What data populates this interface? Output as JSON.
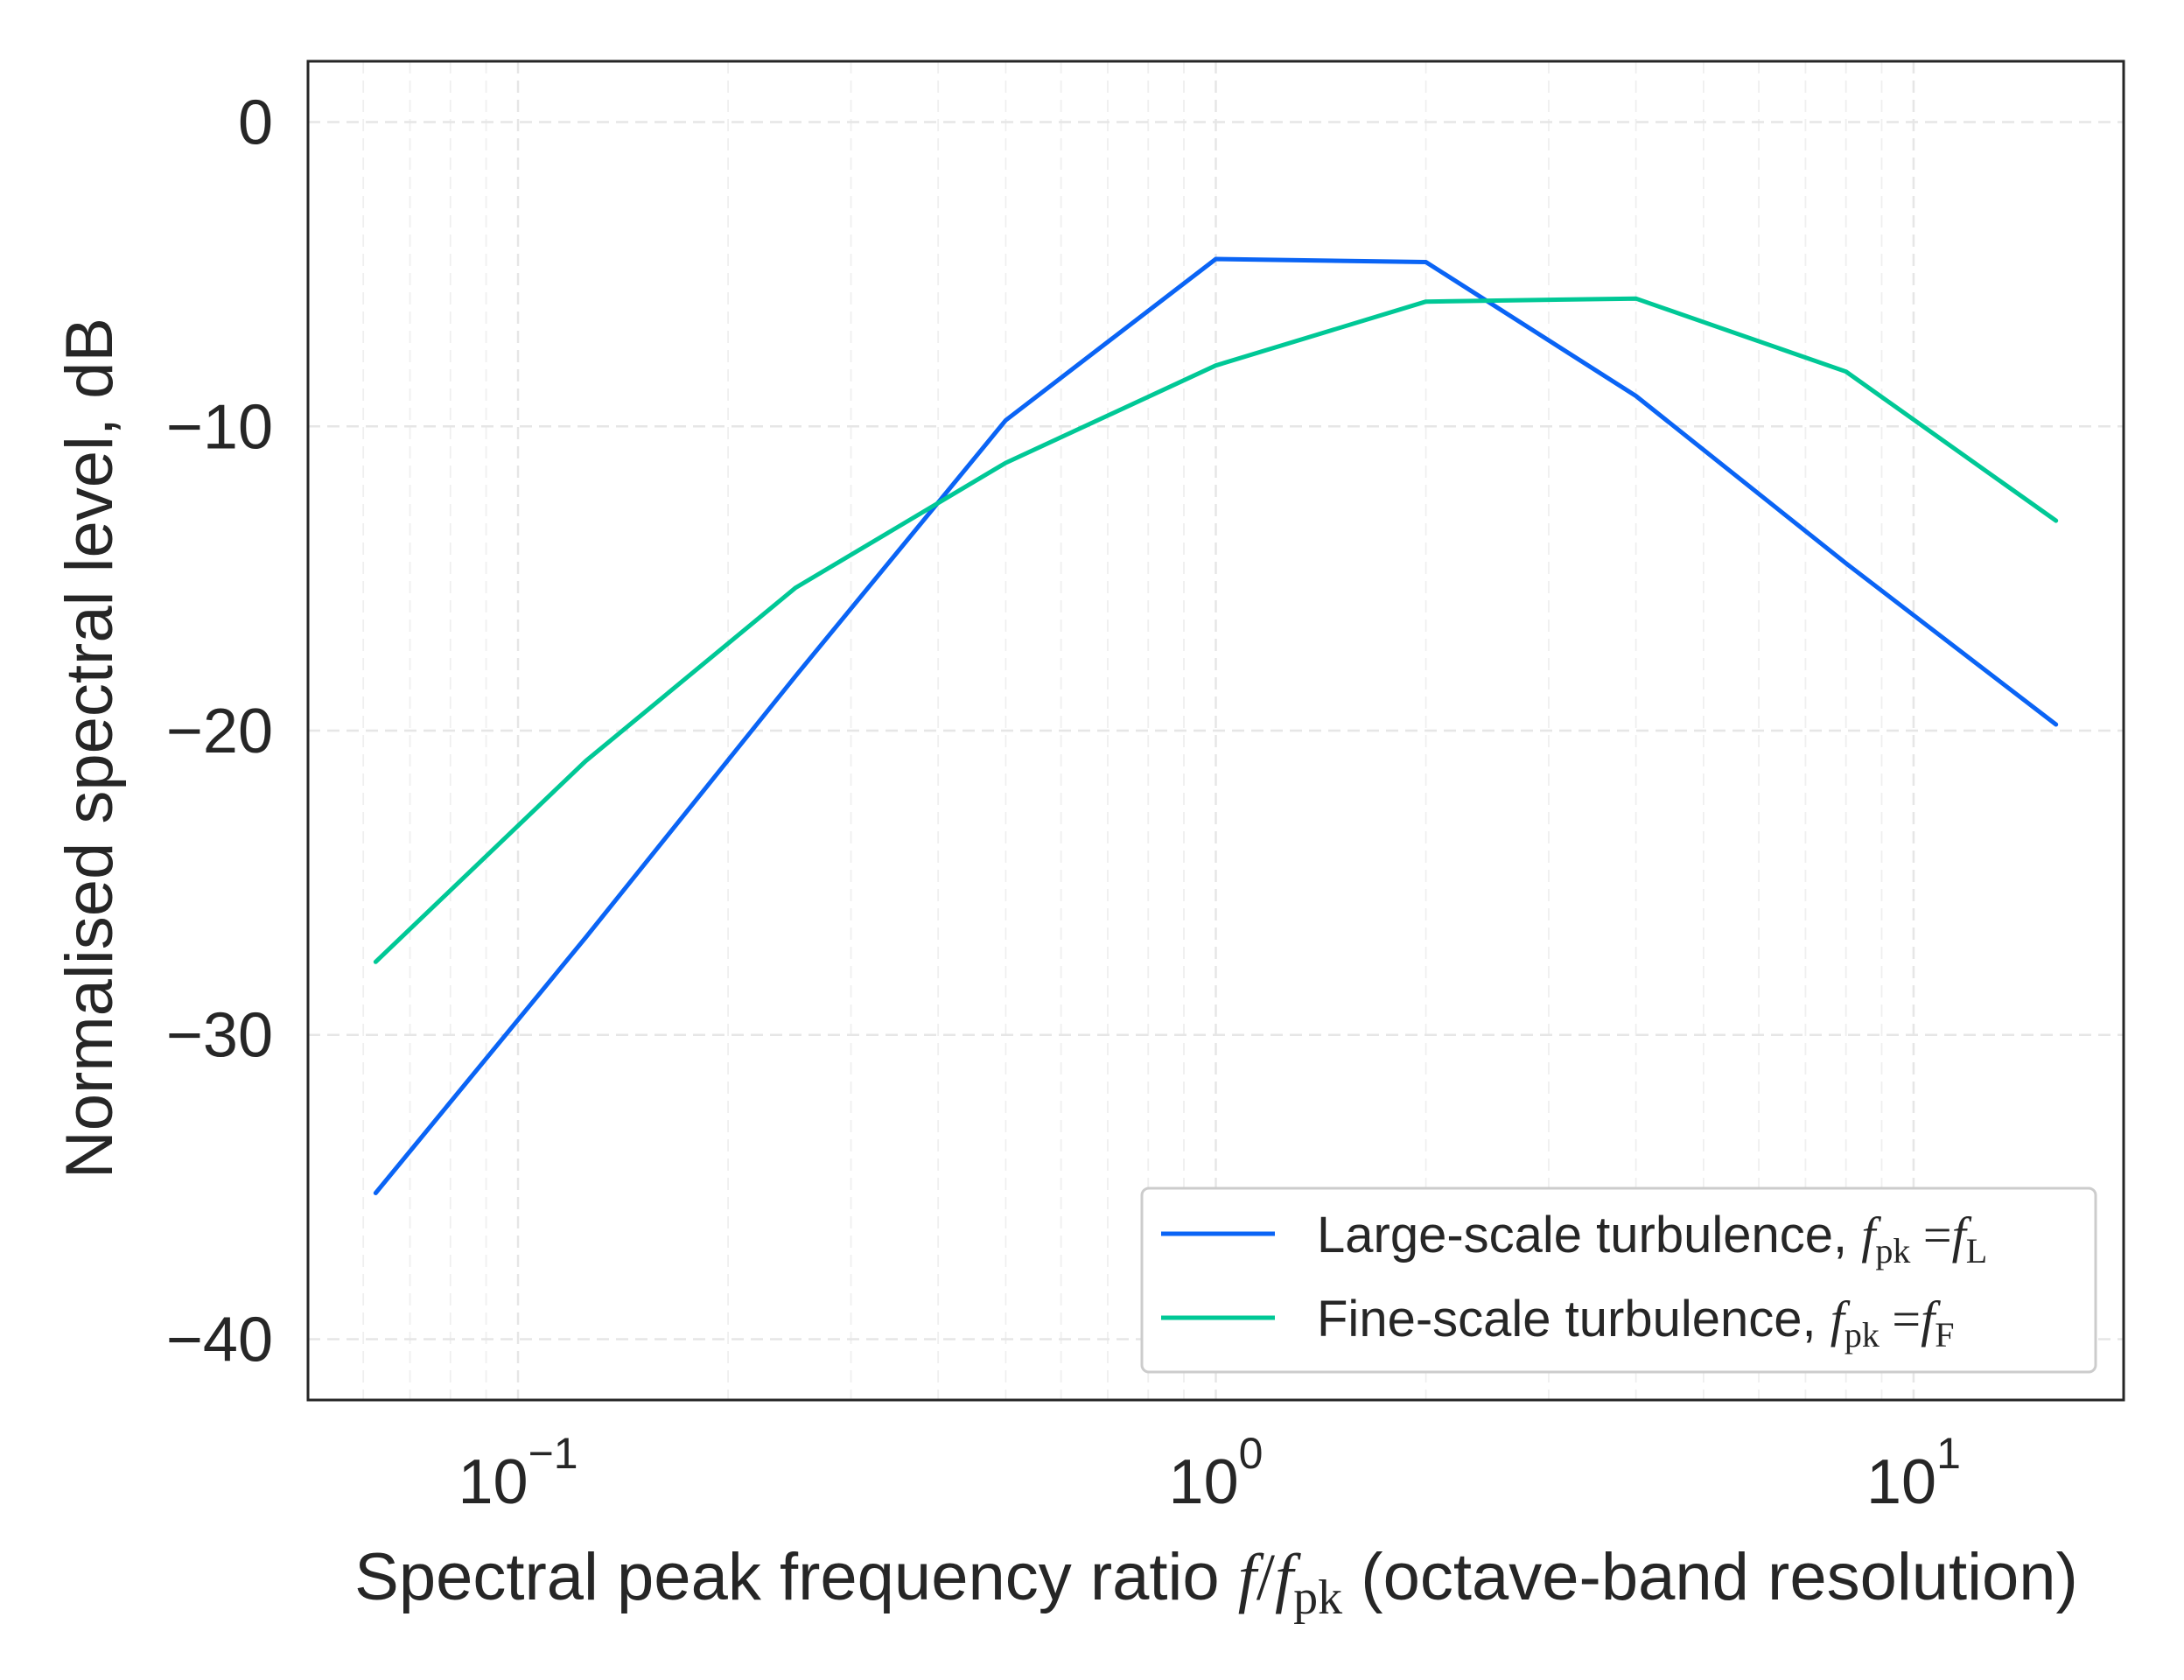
{
  "chart_data": {
    "type": "line",
    "xscale": "log",
    "xlim": [
      0.05,
      20
    ],
    "ylim": [
      -42,
      2
    ],
    "grid": true,
    "legend_position": "lower right",
    "xlabel": {
      "prefix": "Spectral peak frequency ratio ",
      "math_f": "f",
      "math_slash": "/",
      "math_fpk": "f",
      "math_fpk_sub": "pk",
      "suffix": " (octave-band resolution)"
    },
    "ylabel": "Normalised spectral level, dB",
    "x_ticks": [
      {
        "value": 0.1,
        "base": "10",
        "exp": "−1"
      },
      {
        "value": 1,
        "base": "10",
        "exp": "0"
      },
      {
        "value": 10,
        "base": "10",
        "exp": "1"
      }
    ],
    "y_ticks": [
      {
        "value": 0,
        "label": "0"
      },
      {
        "value": -10,
        "label": "−10"
      },
      {
        "value": -20,
        "label": "−20"
      },
      {
        "value": -30,
        "label": "−30"
      },
      {
        "value": -40,
        "label": "−40"
      }
    ],
    "series": [
      {
        "name": "Large-scale turbulence,",
        "math": {
          "f": "f",
          "sub": "pk",
          "eq": "=",
          "f2": "f",
          "sub2": "L"
        },
        "color": "#0a64f5",
        "x": [
          0.0625,
          0.125,
          0.25,
          0.5,
          1,
          2,
          4,
          8,
          16
        ],
        "y": [
          -35.2,
          -26.8,
          -18.2,
          -9.8,
          -4.5,
          -4.6,
          -9.0,
          -14.5,
          -19.8
        ]
      },
      {
        "name": "Fine-scale turbulence,",
        "math": {
          "f": "f",
          "sub": "pk",
          "eq": "=",
          "f2": "f",
          "sub2": "F"
        },
        "color": "#00c896",
        "x": [
          0.0625,
          0.125,
          0.25,
          0.5,
          1,
          2,
          4,
          8,
          16
        ],
        "y": [
          -27.6,
          -21.0,
          -15.3,
          -11.2,
          -8.0,
          -5.9,
          -5.8,
          -8.2,
          -13.1
        ]
      }
    ]
  }
}
